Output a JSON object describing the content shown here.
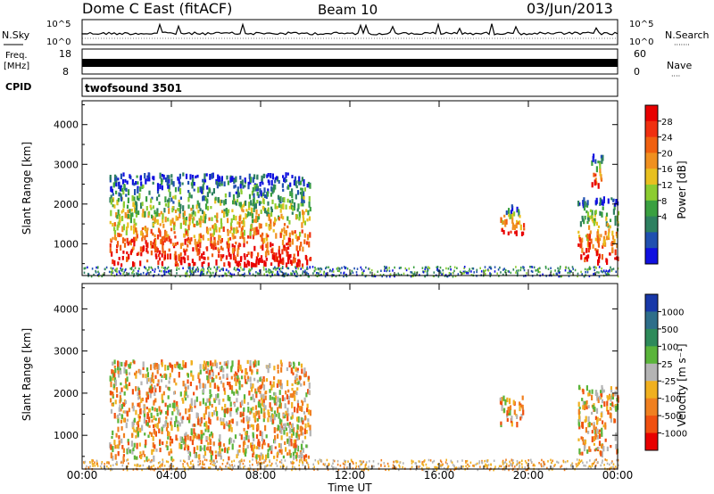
{
  "header": {
    "title": "Dome C East (fitACF)",
    "beam": "Beam 10",
    "date": "03/Jun/2013"
  },
  "nsky_panel": {
    "left_label": "N.Sky",
    "left_ticks": [
      "10^5",
      "10^0"
    ],
    "right_ticks": [
      "10^5",
      "10^0"
    ],
    "right_label": "N.Search",
    "right_label_marker": "·······"
  },
  "freq_panel": {
    "left_label_line1": "Freq.",
    "left_label_line2": "[MHz]",
    "left_ticks": [
      "18",
      "8"
    ],
    "right_ticks": [
      "60",
      "0"
    ],
    "right_label": "Nave",
    "right_label_marker": "····"
  },
  "cpid_panel": {
    "label": "CPID",
    "program": "twofsound 3501"
  },
  "chart_data": [
    {
      "type": "heatmap",
      "panel": "power",
      "ylabel": "Slant Range [km]",
      "xlabel": "",
      "ylim": [
        200,
        4600
      ],
      "yticks": [
        "1000",
        "2000",
        "3000",
        "4000"
      ],
      "xlim_hours": [
        0,
        24
      ],
      "colorbar": {
        "label": "Power [dB]",
        "ticks": [
          "4",
          "8",
          "12",
          "16",
          "20",
          "24",
          "28"
        ],
        "colors": [
          "#1010e0",
          "#2050b0",
          "#2e8060",
          "#3aa040",
          "#8ccc30",
          "#e8c020",
          "#f09020",
          "#f06010",
          "#f03010",
          "#e80000"
        ]
      },
      "echo_regions": [
        {
          "t0": 1.2,
          "t1": 10.2,
          "r0": 500,
          "r1": 2800
        },
        {
          "t0": 18.7,
          "t1": 19.8,
          "r0": 1300,
          "r1": 2000
        },
        {
          "t0": 22.2,
          "t1": 24.0,
          "r0": 600,
          "r1": 2200
        },
        {
          "t0": 22.8,
          "t1": 23.3,
          "r0": 2500,
          "r1": 3300
        }
      ]
    },
    {
      "type": "heatmap",
      "panel": "velocity",
      "ylabel": "Slant Range [km]",
      "xlabel": "Time UT",
      "ylim": [
        200,
        4600
      ],
      "yticks": [
        "1000",
        "2000",
        "3000",
        "4000"
      ],
      "xticks": [
        "00:00",
        "04:00",
        "08:00",
        "12:00",
        "16:00",
        "20:00",
        "00:00"
      ],
      "xlim_hours": [
        0,
        24
      ],
      "colorbar": {
        "label": "Velocity [m s⁻¹]",
        "ticks": [
          "1000",
          "500",
          "100",
          "25",
          "-25",
          "-100",
          "-500",
          "-1000"
        ],
        "colors": [
          "#1838a8",
          "#2e6e8a",
          "#2e8a5a",
          "#5ab43a",
          "#b4b4b4",
          "#f0b020",
          "#f08020",
          "#f05010",
          "#e80000"
        ]
      },
      "echo_regions": [
        {
          "t0": 1.2,
          "t1": 10.2,
          "r0": 500,
          "r1": 2800
        },
        {
          "t0": 18.7,
          "t1": 19.8,
          "r0": 1300,
          "r1": 2000
        },
        {
          "t0": 22.2,
          "t1": 24.0,
          "r0": 600,
          "r1": 2200
        }
      ]
    }
  ]
}
